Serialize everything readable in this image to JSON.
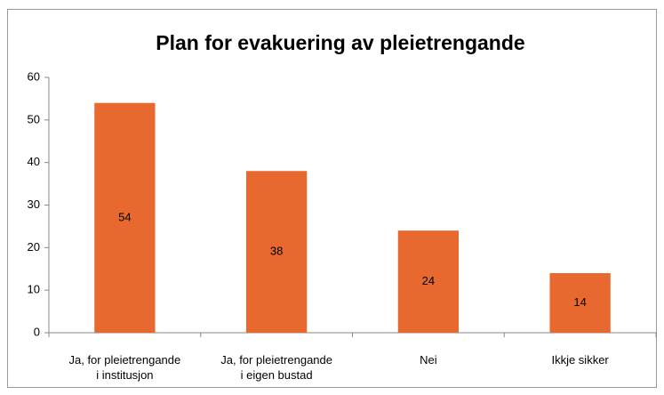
{
  "chart_data": {
    "type": "bar",
    "title": "Plan for evakuering av pleietrengande",
    "categories": [
      "Ja, for pleietrengande\ni institusjon",
      "Ja, for pleietrengande\ni eigen bustad",
      "Nei",
      "Ikkje sikker"
    ],
    "values": [
      54,
      38,
      24,
      14
    ],
    "color": "#e8692f",
    "ylim": [
      0,
      60
    ],
    "yticks": [
      0,
      10,
      20,
      30,
      40,
      50,
      60
    ],
    "grid": false
  }
}
